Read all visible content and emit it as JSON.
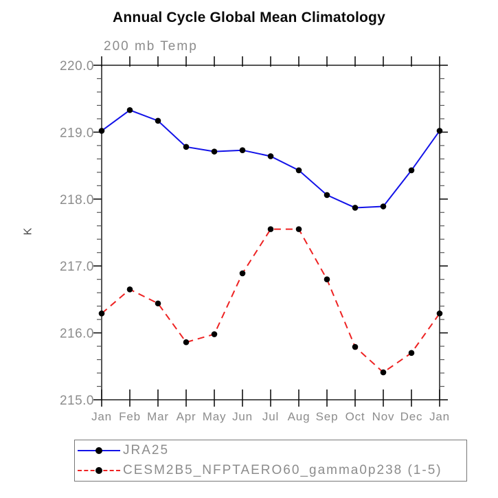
{
  "title": "Annual Cycle Global Mean Climatology",
  "subtitle": "200 mb Temp",
  "ylabel": "K",
  "colors": {
    "series1_blue": "#1212e8",
    "series2_red": "#ee2222",
    "marker_black": "#000000",
    "frame": "#2a2a2a",
    "major_tick": "#111111",
    "minor_tick": "#555555",
    "label_gray": "#8c8c8c",
    "title_black": "#0a0a0a"
  },
  "chart_data": {
    "type": "line",
    "title": "Annual Cycle Global Mean Climatology",
    "subtitle": "200 mb Temp",
    "xlabel": "",
    "ylabel": "K",
    "categories": [
      "Jan",
      "Feb",
      "Mar",
      "Apr",
      "May",
      "Jun",
      "Jul",
      "Aug",
      "Sep",
      "Oct",
      "Nov",
      "Dec",
      "Jan"
    ],
    "ylim": [
      215.0,
      220.0
    ],
    "ytick_values": [
      220.0,
      219.0,
      218.0,
      217.0,
      216.0,
      215.0
    ],
    "ytick_labels": [
      "220.0",
      "219.0",
      "218.0",
      "217.0",
      "216.0",
      "215.0"
    ],
    "minor_tick_step": 0.2,
    "grid": false,
    "legend_position": "bottom",
    "series": [
      {
        "name": "JRA25",
        "color": "#1212e8",
        "style": "solid",
        "marker": "circle",
        "values": [
          219.02,
          219.33,
          219.17,
          218.78,
          218.71,
          218.73,
          218.64,
          218.43,
          218.06,
          217.87,
          217.89,
          218.43,
          219.02
        ]
      },
      {
        "name": "CESM2B5_NFPTAERO60_gamma0p238 (1-5)",
        "color": "#ee2222",
        "style": "dashed",
        "marker": "circle",
        "values": [
          216.29,
          216.65,
          216.44,
          215.86,
          215.98,
          216.89,
          217.55,
          217.55,
          216.8,
          215.79,
          215.41,
          215.7,
          216.29
        ]
      }
    ]
  }
}
